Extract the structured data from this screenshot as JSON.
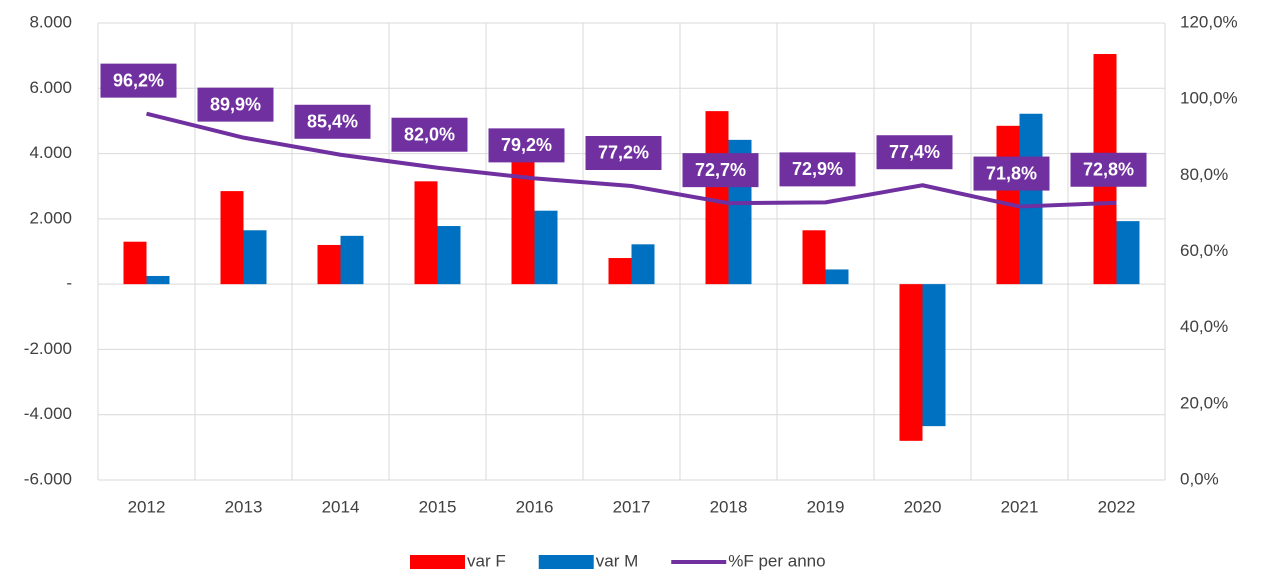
{
  "chart_data": {
    "type": "bar-line",
    "categories": [
      "2012",
      "2013",
      "2014",
      "2015",
      "2016",
      "2017",
      "2018",
      "2019",
      "2020",
      "2021",
      "2022"
    ],
    "series": [
      {
        "name": "var F",
        "color": "#ff0000",
        "values": [
          1300,
          2850,
          1200,
          3150,
          3800,
          800,
          5300,
          1650,
          -4800,
          4850,
          7050
        ]
      },
      {
        "name": "var M",
        "color": "#0070c0",
        "values": [
          250,
          1650,
          1480,
          1780,
          2250,
          1220,
          4420,
          450,
          -4350,
          5220,
          1930
        ]
      },
      {
        "name": "%F per anno",
        "color": "#7030a0",
        "axis": "y2",
        "type": "line",
        "values": [
          96.2,
          89.9,
          85.4,
          82.0,
          79.2,
          77.2,
          72.7,
          72.9,
          77.4,
          71.8,
          72.8
        ],
        "value_labels": [
          "96,2%",
          "89,9%",
          "85,4%",
          "82,0%",
          "79,2%",
          "77,2%",
          "72,7%",
          "72,9%",
          "77,4%",
          "71,8%",
          "72,8%"
        ]
      }
    ],
    "ylim": [
      -6000,
      8000
    ],
    "yticks": [
      {
        "value": -6000,
        "label": "-6.000"
      },
      {
        "value": -4000,
        "label": "-4.000"
      },
      {
        "value": -2000,
        "label": "-2.000"
      },
      {
        "value": 0,
        "label": "-"
      },
      {
        "value": 2000,
        "label": "2.000"
      },
      {
        "value": 4000,
        "label": "4.000"
      },
      {
        "value": 6000,
        "label": "6.000"
      },
      {
        "value": 8000,
        "label": "8.000"
      }
    ],
    "y2lim": [
      0,
      120
    ],
    "y2ticks": [
      {
        "value": 0,
        "label": "0,0%"
      },
      {
        "value": 20,
        "label": "20,0%"
      },
      {
        "value": 40,
        "label": "40,0%"
      },
      {
        "value": 60,
        "label": "60,0%"
      },
      {
        "value": 80,
        "label": "80,0%"
      },
      {
        "value": 100,
        "label": "100,0%"
      },
      {
        "value": 120,
        "label": "120,0%"
      }
    ],
    "grid": true,
    "legend": "bottom"
  }
}
